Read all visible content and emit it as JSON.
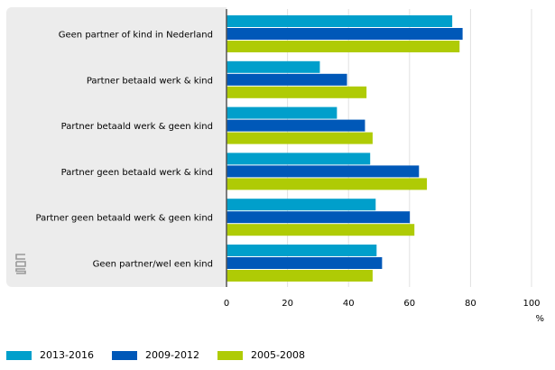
{
  "chart_data": {
    "type": "bar",
    "orientation": "horizontal",
    "categories": [
      "Geen partner of kind in Nederland",
      "Partner betaald werk & kind",
      "Partner betaald werk & geen kind",
      "Partner geen betaald werk & kind",
      "Partner geen betaald werk & geen kind",
      "Geen partner/wel een kind"
    ],
    "series": [
      {
        "name": "2013-2016",
        "color": "#009fcb",
        "values": [
          74.0,
          30.6,
          36.2,
          47.1,
          48.9,
          49.2
        ]
      },
      {
        "name": "2009-2012",
        "color": "#0058b8",
        "values": [
          77.4,
          39.5,
          45.4,
          63.1,
          60.1,
          51.0
        ]
      },
      {
        "name": "2005-2008",
        "color": "#afcb05",
        "values": [
          76.4,
          45.9,
          47.9,
          65.7,
          61.6,
          47.9
        ]
      }
    ],
    "xlim": [
      0,
      100
    ],
    "xticks": [
      "0",
      "20",
      "40",
      "60",
      "80",
      "100"
    ],
    "xlabel": "%",
    "grid": true,
    "legend": "bottom-left"
  }
}
